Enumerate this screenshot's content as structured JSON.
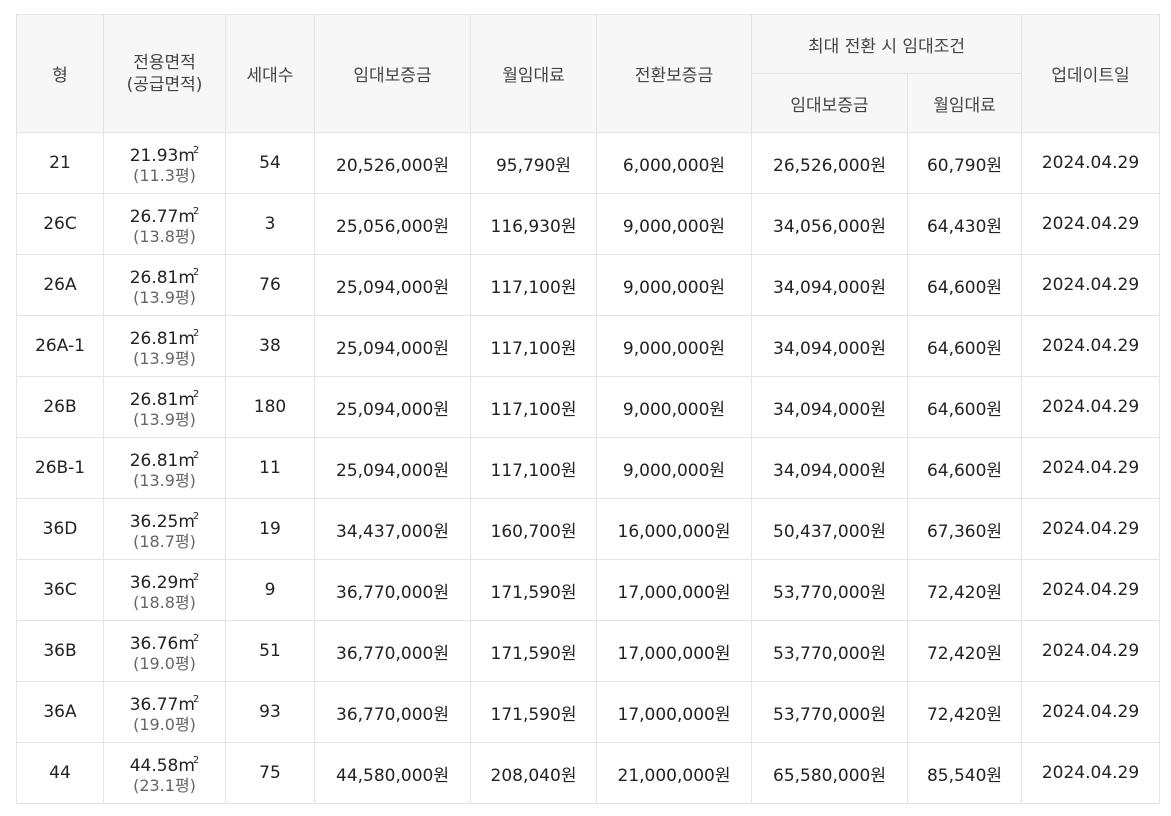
{
  "header": {
    "type": "형",
    "area_line1": "전용면적",
    "area_line2": "(공급면적)",
    "households": "세대수",
    "deposit": "임대보증금",
    "monthly_rent": "월임대료",
    "conversion_deposit": "전환보증금",
    "max_conversion_group": "최대 전환 시 임대조건",
    "max_deposit": "임대보증금",
    "max_monthly_rent": "월임대료",
    "updated": "업데이트일"
  },
  "rows": [
    {
      "type": "21",
      "area": "21.93",
      "pyeong": "(11.3평)",
      "households": "54",
      "deposit": "20,526,000원",
      "rent": "95,790원",
      "conv": "6,000,000원",
      "max_deposit": "26,526,000원",
      "max_rent": "60,790원",
      "updated": "2024.04.29"
    },
    {
      "type": "26C",
      "area": "26.77",
      "pyeong": "(13.8평)",
      "households": "3",
      "deposit": "25,056,000원",
      "rent": "116,930원",
      "conv": "9,000,000원",
      "max_deposit": "34,056,000원",
      "max_rent": "64,430원",
      "updated": "2024.04.29"
    },
    {
      "type": "26A",
      "area": "26.81",
      "pyeong": "(13.9평)",
      "households": "76",
      "deposit": "25,094,000원",
      "rent": "117,100원",
      "conv": "9,000,000원",
      "max_deposit": "34,094,000원",
      "max_rent": "64,600원",
      "updated": "2024.04.29"
    },
    {
      "type": "26A-1",
      "area": "26.81",
      "pyeong": "(13.9평)",
      "households": "38",
      "deposit": "25,094,000원",
      "rent": "117,100원",
      "conv": "9,000,000원",
      "max_deposit": "34,094,000원",
      "max_rent": "64,600원",
      "updated": "2024.04.29"
    },
    {
      "type": "26B",
      "area": "26.81",
      "pyeong": "(13.9평)",
      "households": "180",
      "deposit": "25,094,000원",
      "rent": "117,100원",
      "conv": "9,000,000원",
      "max_deposit": "34,094,000원",
      "max_rent": "64,600원",
      "updated": "2024.04.29"
    },
    {
      "type": "26B-1",
      "area": "26.81",
      "pyeong": "(13.9평)",
      "households": "11",
      "deposit": "25,094,000원",
      "rent": "117,100원",
      "conv": "9,000,000원",
      "max_deposit": "34,094,000원",
      "max_rent": "64,600원",
      "updated": "2024.04.29"
    },
    {
      "type": "36D",
      "area": "36.25",
      "pyeong": "(18.7평)",
      "households": "19",
      "deposit": "34,437,000원",
      "rent": "160,700원",
      "conv": "16,000,000원",
      "max_deposit": "50,437,000원",
      "max_rent": "67,360원",
      "updated": "2024.04.29"
    },
    {
      "type": "36C",
      "area": "36.29",
      "pyeong": "(18.8평)",
      "households": "9",
      "deposit": "36,770,000원",
      "rent": "171,590원",
      "conv": "17,000,000원",
      "max_deposit": "53,770,000원",
      "max_rent": "72,420원",
      "updated": "2024.04.29"
    },
    {
      "type": "36B",
      "area": "36.76",
      "pyeong": "(19.0평)",
      "households": "51",
      "deposit": "36,770,000원",
      "rent": "171,590원",
      "conv": "17,000,000원",
      "max_deposit": "53,770,000원",
      "max_rent": "72,420원",
      "updated": "2024.04.29"
    },
    {
      "type": "36A",
      "area": "36.77",
      "pyeong": "(19.0평)",
      "households": "93",
      "deposit": "36,770,000원",
      "rent": "171,590원",
      "conv": "17,000,000원",
      "max_deposit": "53,770,000원",
      "max_rent": "72,420원",
      "updated": "2024.04.29"
    },
    {
      "type": "44",
      "area": "44.58",
      "pyeong": "(23.1평)",
      "households": "75",
      "deposit": "44,580,000원",
      "rent": "208,040원",
      "conv": "21,000,000원",
      "max_deposit": "65,580,000원",
      "max_rent": "85,540원",
      "updated": "2024.04.29"
    }
  ],
  "units": {
    "area_unit": "m",
    "area_sup": "2"
  }
}
